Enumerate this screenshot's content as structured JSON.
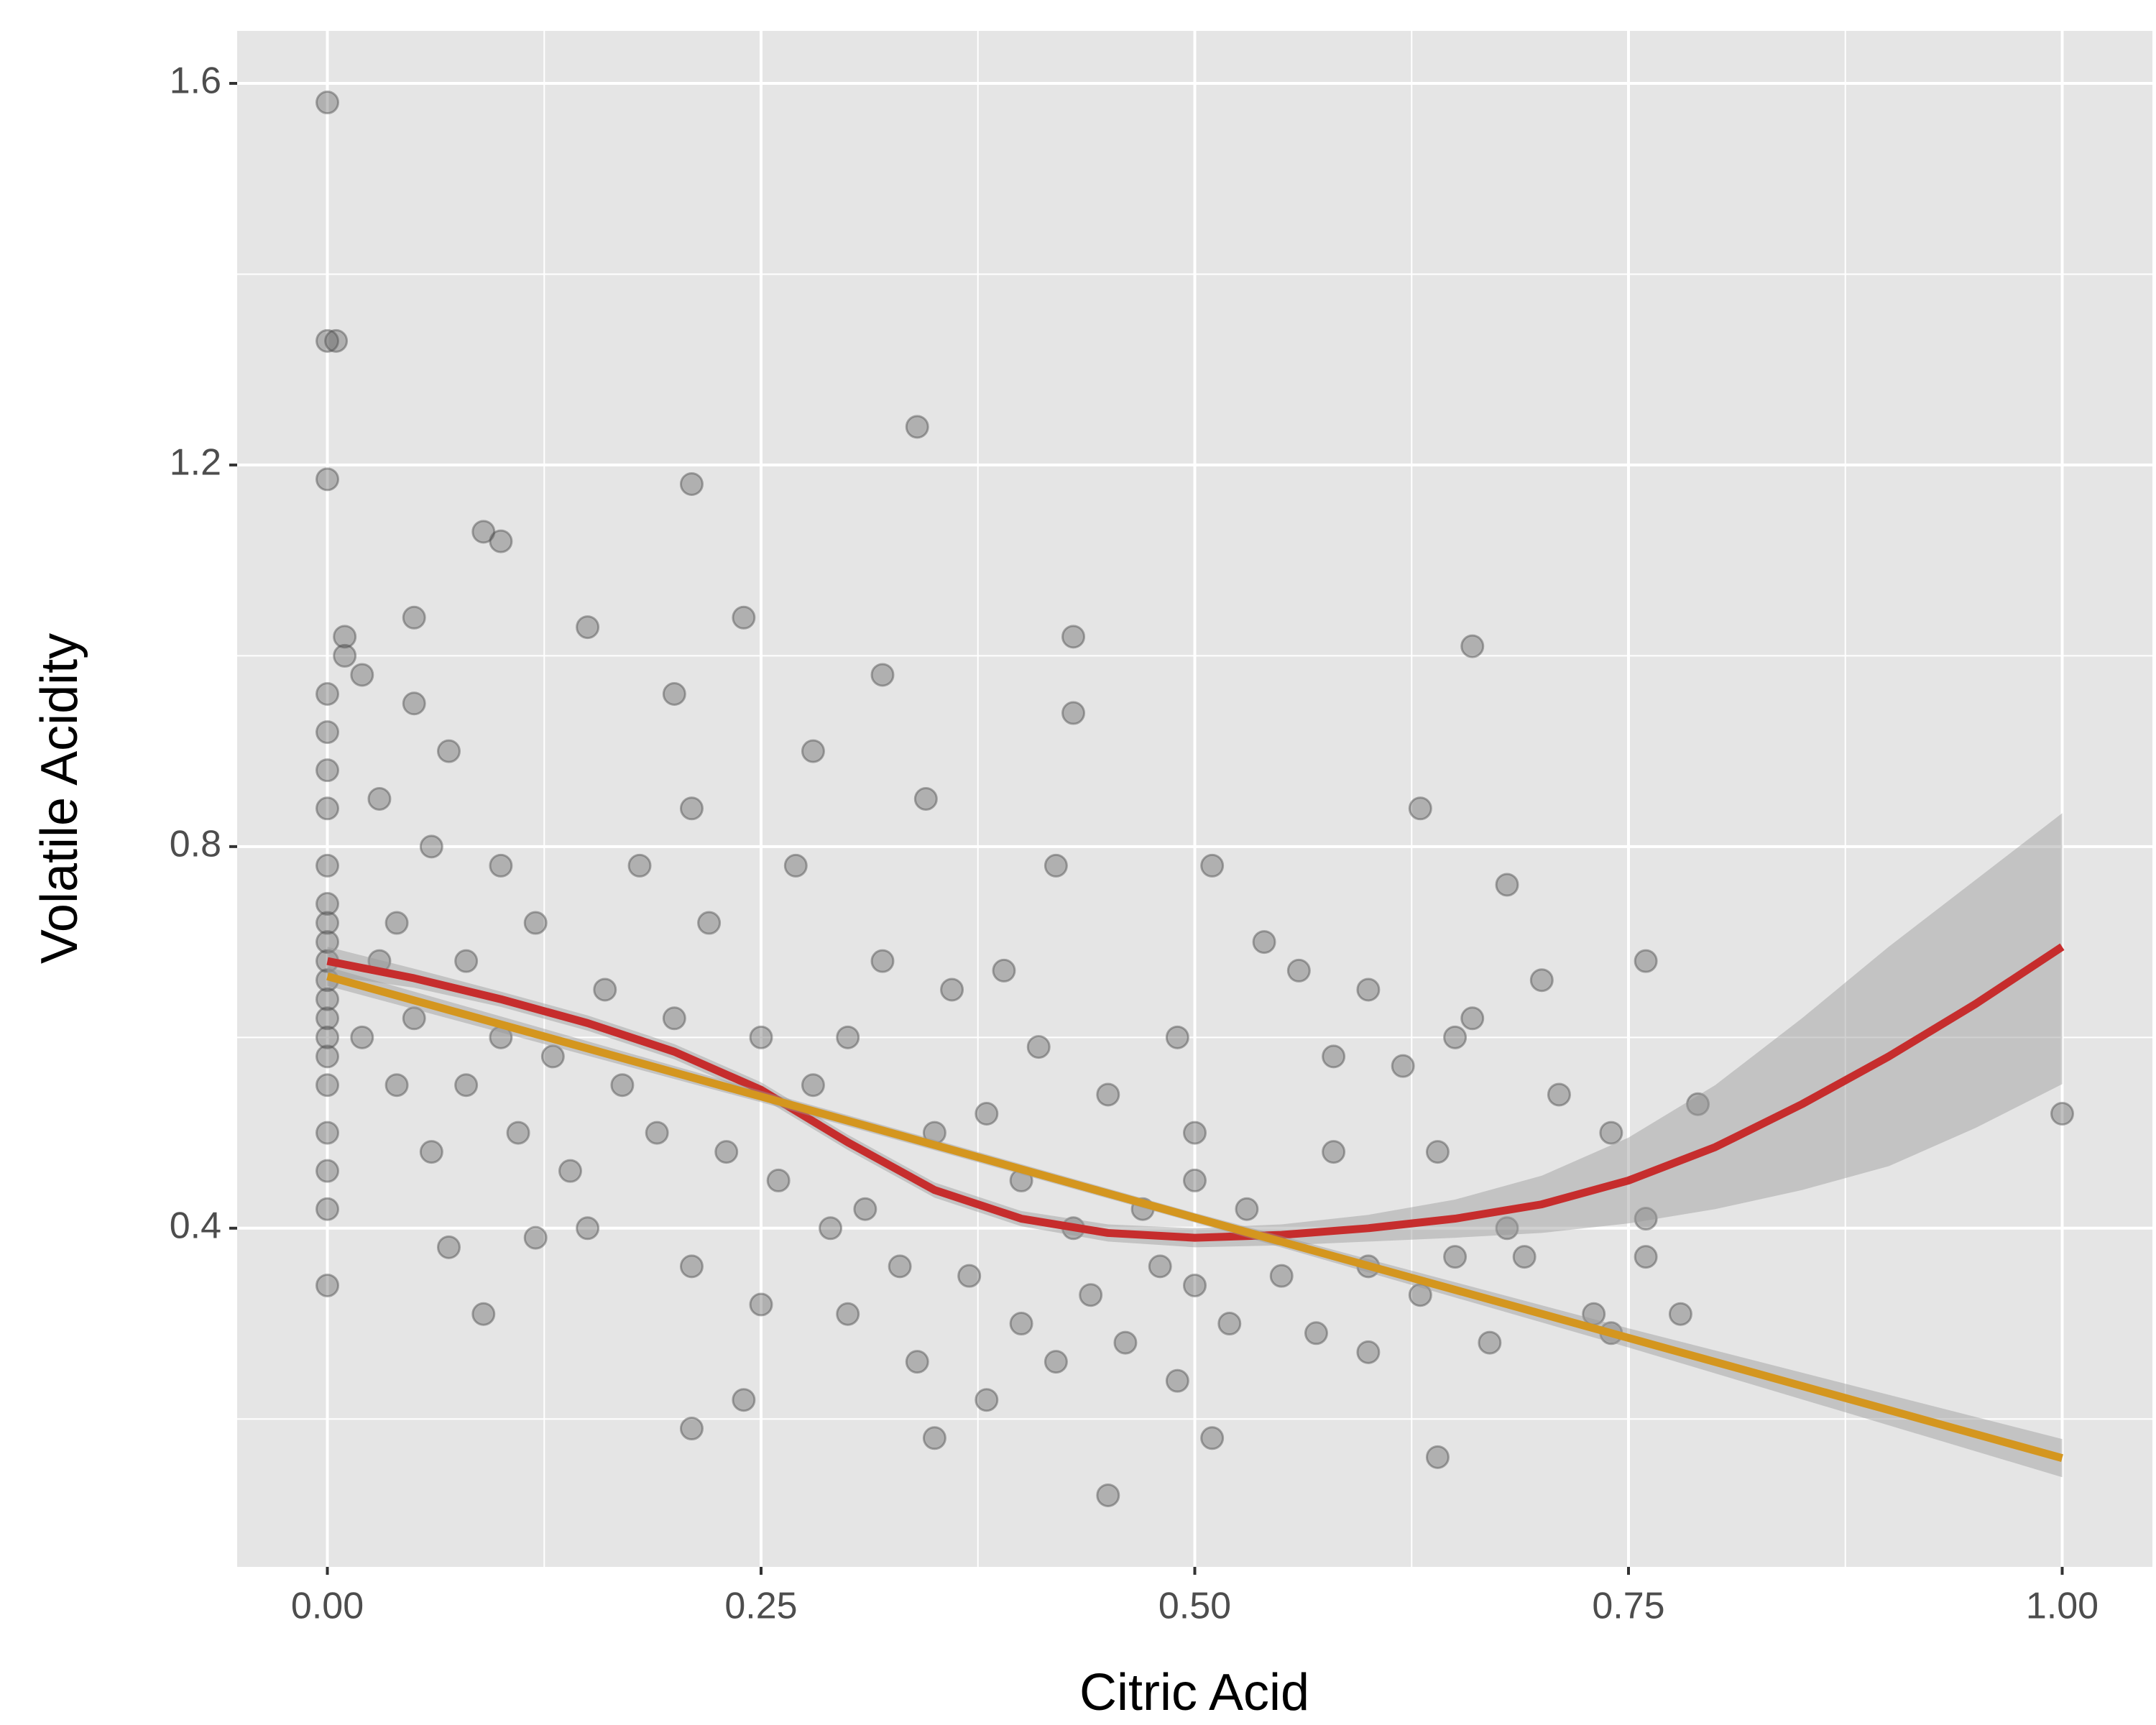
{
  "chart_data": {
    "type": "scatter",
    "xlabel": "Citric Acid",
    "ylabel": "Volatile Acidity",
    "xlim": [
      -0.052,
      1.052
    ],
    "ylim": [
      0.045,
      1.655
    ],
    "xticks": [
      {
        "value": 0,
        "label": "0.00"
      },
      {
        "value": 0.25,
        "label": "0.25"
      },
      {
        "value": 0.5,
        "label": "0.50"
      },
      {
        "value": 0.75,
        "label": "0.75"
      },
      {
        "value": 1,
        "label": "1.00"
      }
    ],
    "yticks": [
      0.4,
      0.8,
      1.2,
      1.6
    ],
    "grid": true,
    "series": [
      {
        "type": "scatter",
        "color": "#4d4d4d",
        "x": [
          0,
          0,
          0,
          0,
          0,
          0,
          0,
          0,
          0,
          0,
          0,
          0,
          0,
          0,
          0,
          0,
          0,
          0,
          0,
          0,
          0,
          0,
          0.005,
          0.01,
          0.01,
          0.02,
          0.02,
          0.03,
          0.03,
          0.04,
          0.04,
          0.05,
          0.05,
          0.05,
          0.06,
          0.06,
          0.07,
          0.07,
          0.08,
          0.08,
          0.09,
          0.09,
          0.1,
          0.1,
          0.1,
          0.11,
          0.12,
          0.12,
          0.13,
          0.14,
          0.15,
          0.15,
          0.16,
          0.17,
          0.18,
          0.19,
          0.2,
          0.2,
          0.21,
          0.21,
          0.21,
          0.21,
          0.22,
          0.23,
          0.24,
          0.24,
          0.25,
          0.25,
          0.26,
          0.27,
          0.28,
          0.28,
          0.29,
          0.3,
          0.3,
          0.31,
          0.32,
          0.32,
          0.33,
          0.34,
          0.34,
          0.345,
          0.35,
          0.35,
          0.36,
          0.37,
          0.38,
          0.38,
          0.39,
          0.4,
          0.4,
          0.41,
          0.42,
          0.42,
          0.43,
          0.43,
          0.43,
          0.44,
          0.45,
          0.45,
          0.46,
          0.47,
          0.48,
          0.49,
          0.49,
          0.5,
          0.5,
          0.5,
          0.51,
          0.51,
          0.52,
          0.53,
          0.54,
          0.55,
          0.56,
          0.57,
          0.58,
          0.58,
          0.6,
          0.6,
          0.6,
          0.62,
          0.63,
          0.63,
          0.64,
          0.64,
          0.65,
          0.65,
          0.66,
          0.66,
          0.67,
          0.68,
          0.68,
          0.69,
          0.7,
          0.71,
          0.73,
          0.74,
          0.74,
          0.76,
          0.76,
          0.76,
          0.78,
          0.79,
          1.0
        ],
        "values": [
          1.58,
          1.33,
          1.185,
          0.58,
          0.62,
          0.66,
          0.7,
          0.74,
          0.78,
          0.84,
          0.88,
          0.92,
          0.96,
          0.5,
          0.46,
          0.42,
          0.34,
          0.6,
          0.64,
          0.72,
          0.55,
          0.68,
          1.33,
          1.02,
          1.0,
          0.98,
          0.6,
          0.85,
          0.68,
          0.55,
          0.72,
          0.95,
          1.04,
          0.62,
          0.48,
          0.8,
          0.38,
          0.9,
          0.55,
          0.68,
          1.13,
          0.31,
          1.12,
          0.78,
          0.6,
          0.5,
          0.39,
          0.72,
          0.58,
          0.46,
          1.03,
          0.4,
          0.65,
          0.55,
          0.78,
          0.5,
          0.96,
          0.62,
          1.18,
          0.19,
          0.84,
          0.36,
          0.72,
          0.48,
          1.04,
          0.22,
          0.6,
          0.32,
          0.45,
          0.78,
          0.9,
          0.55,
          0.4,
          0.6,
          0.31,
          0.42,
          0.98,
          0.68,
          0.36,
          1.24,
          0.26,
          0.85,
          0.5,
          0.18,
          0.65,
          0.35,
          0.52,
          0.22,
          0.67,
          0.3,
          0.45,
          0.59,
          0.26,
          0.78,
          1.02,
          0.94,
          0.4,
          0.33,
          0.54,
          0.12,
          0.28,
          0.42,
          0.36,
          0.6,
          0.24,
          0.5,
          0.45,
          0.34,
          0.18,
          0.78,
          0.3,
          0.42,
          0.7,
          0.35,
          0.67,
          0.29,
          0.58,
          0.48,
          0.65,
          0.36,
          0.27,
          0.57,
          0.33,
          0.84,
          0.48,
          0.16,
          0.6,
          0.37,
          0.62,
          1.01,
          0.28,
          0.76,
          0.4,
          0.37,
          0.66,
          0.54,
          0.31,
          0.5,
          0.29,
          0.41,
          0.37,
          0.68,
          0.31,
          0.53,
          0.52
        ]
      },
      {
        "type": "line",
        "color": "#c62d2d",
        "band_color": "#999999",
        "x": [
          0,
          0.05,
          0.1,
          0.15,
          0.2,
          0.25,
          0.3,
          0.35,
          0.4,
          0.45,
          0.5,
          0.55,
          0.6,
          0.65,
          0.7,
          0.75,
          0.8,
          0.85,
          0.9,
          0.95,
          1.0
        ],
        "values": [
          0.68,
          0.662,
          0.64,
          0.615,
          0.585,
          0.545,
          0.49,
          0.44,
          0.41,
          0.395,
          0.39,
          0.393,
          0.4,
          0.41,
          0.425,
          0.45,
          0.485,
          0.53,
          0.58,
          0.635,
          0.695
        ],
        "lower": [
          0.665,
          0.652,
          0.632,
          0.607,
          0.577,
          0.537,
          0.482,
          0.432,
          0.402,
          0.386,
          0.38,
          0.382,
          0.386,
          0.39,
          0.395,
          0.405,
          0.42,
          0.44,
          0.465,
          0.505,
          0.551
        ],
        "upper": [
          0.695,
          0.672,
          0.648,
          0.623,
          0.593,
          0.553,
          0.498,
          0.448,
          0.418,
          0.404,
          0.4,
          0.404,
          0.414,
          0.43,
          0.455,
          0.495,
          0.55,
          0.62,
          0.695,
          0.765,
          0.835
        ]
      },
      {
        "type": "line",
        "color": "#d4961f",
        "band_color": "#999999",
        "x": [
          0,
          0.25,
          0.5,
          0.75,
          1.0
        ],
        "values": [
          0.664,
          0.538,
          0.411,
          0.285,
          0.159
        ],
        "lower": [
          0.654,
          0.532,
          0.406,
          0.275,
          0.139
        ],
        "upper": [
          0.674,
          0.544,
          0.416,
          0.295,
          0.179
        ]
      }
    ]
  }
}
